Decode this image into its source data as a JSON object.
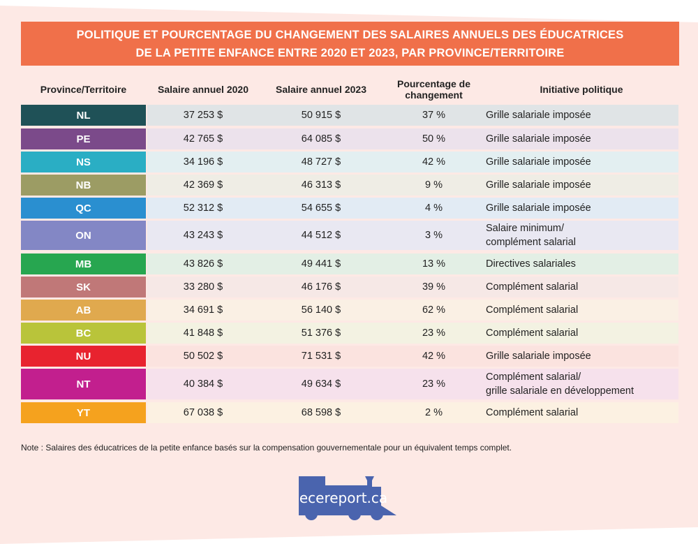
{
  "title": {
    "line1": "POLITIQUE ET POURCENTAGE DU CHANGEMENT DES SALAIRES ANNUELS DES ÉDUCATRICES",
    "line2": "DE LA PETITE ENFANCE ENTRE 2020 ET 2023, PAR PROVINCE/TERRITOIRE"
  },
  "headers": {
    "province": "Province/Territoire",
    "s2020": "Salaire annuel 2020",
    "s2023": "Salaire annuel 2023",
    "pct1": "Pourcentage de",
    "pct2": "changement",
    "policy": "Initiative politique"
  },
  "rows": [
    {
      "code": "NL",
      "s2020": "37 253 $",
      "s2023": "50 915 $",
      "pct": "37 %",
      "policy": "Grille salariale imposée",
      "policy2": "",
      "color": "#1f5157",
      "tint": "#e0e4e6"
    },
    {
      "code": "PE",
      "s2020": "42 765 $",
      "s2023": "64 085 $",
      "pct": "50 %",
      "policy": "Grille salariale imposée",
      "policy2": "",
      "color": "#7b4a8a",
      "tint": "#ece2ec"
    },
    {
      "code": "NS",
      "s2020": "34 196 $",
      "s2023": "48 727 $",
      "pct": "42 %",
      "policy": "Grille salariale imposée",
      "policy2": "",
      "color": "#2aaec4",
      "tint": "#e3eff1"
    },
    {
      "code": "NB",
      "s2020": "42 369 $",
      "s2023": "46 313 $",
      "pct": "9 %",
      "policy": "Grille salariale imposée",
      "policy2": "",
      "color": "#9c9c64",
      "tint": "#efede5"
    },
    {
      "code": "QC",
      "s2020": "52 312 $",
      "s2023": "54 655 $",
      "pct": "4 %",
      "policy": "Grille salariale imposée",
      "policy2": "",
      "color": "#2a8fd0",
      "tint": "#e2ebf4"
    },
    {
      "code": "ON",
      "s2020": "43 243 $",
      "s2023": "44 512 $",
      "pct": "3 %",
      "policy": "Salaire minimum/",
      "policy2": "complément salarial",
      "color": "#8387c5",
      "tint": "#e9e8f2"
    },
    {
      "code": "MB",
      "s2020": "43 826 $",
      "s2023": "49 441 $",
      "pct": "13 %",
      "policy": "Directives salariales",
      "policy2": "",
      "color": "#27a650",
      "tint": "#e3efe5"
    },
    {
      "code": "SK",
      "s2020": "33 280 $",
      "s2023": "46 176 $",
      "pct": "39 %",
      "policy": "Complément salarial",
      "policy2": "",
      "color": "#c07878",
      "tint": "#f6e8e6"
    },
    {
      "code": "AB",
      "s2020": "34 691 $",
      "s2023": "56 140 $",
      "pct": "62 %",
      "policy": "Complément salarial",
      "policy2": "",
      "color": "#e0a94e",
      "tint": "#faf0e4"
    },
    {
      "code": "BC",
      "s2020": "41 848 $",
      "s2023": "51 376 $",
      "pct": "23 %",
      "policy": "Complément salarial",
      "policy2": "",
      "color": "#b9c43a",
      "tint": "#f3f2e2"
    },
    {
      "code": "NU",
      "s2020": "50 502 $",
      "s2023": "71 531 $",
      "pct": "42 %",
      "policy": "Grille salariale imposée",
      "policy2": "",
      "color": "#e8232f",
      "tint": "#fbe3df"
    },
    {
      "code": "NT",
      "s2020": "40 384 $",
      "s2023": "49 634 $",
      "pct": "23 %",
      "policy": "Complément salarial/",
      "policy2": "grille salariale en développement",
      "color": "#c21f8e",
      "tint": "#f6e1ec"
    },
    {
      "code": "YT",
      "s2020": "67 038 $",
      "s2023": "68 598 $",
      "pct": "2 %",
      "policy": "Complément salarial",
      "policy2": "",
      "color": "#f5a21e",
      "tint": "#fcf1e2"
    }
  ],
  "note": "Note : Salaires des éducatrices de la petite enfance basés sur la compensation gouvernementale pour un équivalent temps complet.",
  "logo": {
    "text": "ecereport.ca",
    "color": "#4a64ae"
  }
}
